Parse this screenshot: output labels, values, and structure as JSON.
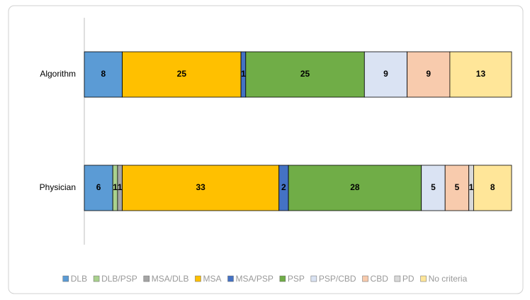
{
  "chart_data": {
    "type": "stacked-bar-horizontal",
    "categories": [
      "Algorithm",
      "Physician"
    ],
    "series": [
      {
        "name": "DLB",
        "color": "#5b9bd5",
        "values": [
          8,
          6
        ]
      },
      {
        "name": "DLB/PSP",
        "color": "#a9d18e",
        "values": [
          0,
          1
        ]
      },
      {
        "name": "MSA/DLB",
        "color": "#a5a5a5",
        "values": [
          0,
          1
        ]
      },
      {
        "name": "MSA",
        "color": "#ffc000",
        "values": [
          25,
          33
        ]
      },
      {
        "name": "MSA/PSP",
        "color": "#4472c4",
        "values": [
          1,
          2
        ]
      },
      {
        "name": "PSP",
        "color": "#70ad47",
        "values": [
          25,
          28
        ]
      },
      {
        "name": "PSP/CBD",
        "color": "#dae3f3",
        "values": [
          9,
          5
        ]
      },
      {
        "name": "CBD",
        "color": "#f8cbad",
        "values": [
          9,
          5
        ]
      },
      {
        "name": "PD",
        "color": "#d9d9d9",
        "values": [
          0,
          1
        ]
      },
      {
        "name": "No criteria",
        "color": "#ffe699",
        "values": [
          13,
          8
        ]
      }
    ],
    "legend": "bottom"
  }
}
